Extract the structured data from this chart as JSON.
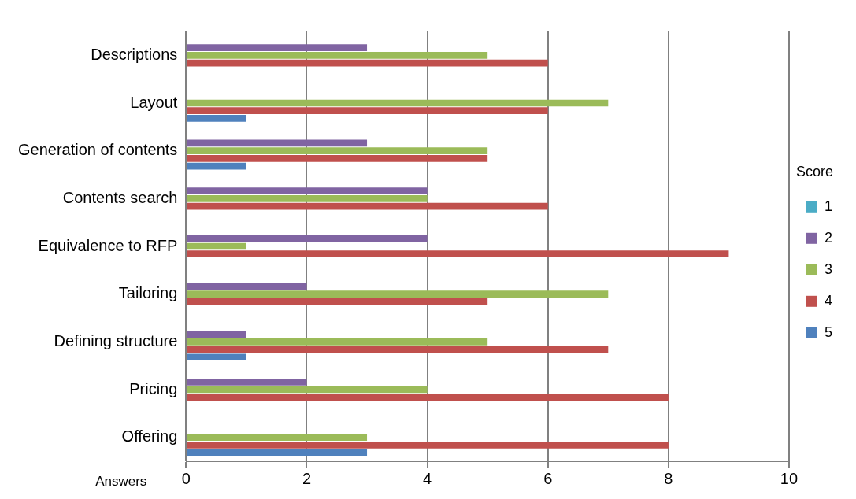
{
  "chart_data": {
    "type": "bar",
    "orientation": "horizontal",
    "xlabel": "Answers",
    "legend_title": "Score",
    "legend": "right",
    "grid": "x",
    "categories": [
      "Descriptions",
      "Layout",
      "Generation of contents",
      "Contents search",
      "Equivalence to RFP",
      "Tailoring",
      "Defining structure",
      "Pricing",
      "Offering"
    ],
    "xlim": [
      0,
      10
    ],
    "xticks": [
      0,
      2,
      4,
      6,
      8,
      10
    ],
    "series": [
      {
        "name": "1",
        "color": "#4bacc6",
        "values": [
          0,
          0,
          0,
          0,
          0,
          0,
          0,
          0,
          0
        ]
      },
      {
        "name": "2",
        "color": "#8064a2",
        "values": [
          3,
          0,
          3,
          4,
          4,
          2,
          1,
          2,
          0
        ]
      },
      {
        "name": "3",
        "color": "#9bbb59",
        "values": [
          5,
          7,
          5,
          4,
          1,
          7,
          5,
          4,
          3
        ]
      },
      {
        "name": "4",
        "color": "#c0504d",
        "values": [
          6,
          6,
          5,
          6,
          9,
          5,
          7,
          8,
          8
        ]
      },
      {
        "name": "5",
        "color": "#4f81bd",
        "values": [
          0,
          1,
          1,
          0,
          0,
          0,
          1,
          0,
          3
        ]
      }
    ]
  }
}
